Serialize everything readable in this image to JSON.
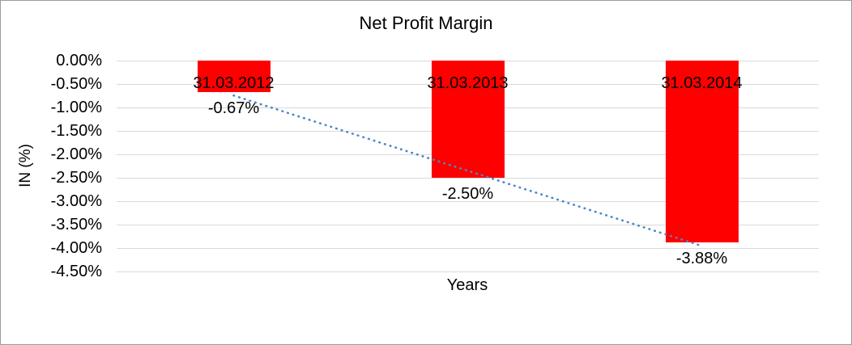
{
  "chart_data": {
    "type": "bar",
    "title": "Net Profit Margin",
    "xlabel": "Years",
    "ylabel": "IN (%)",
    "categories": [
      "31.03.2012",
      "31.03.2013",
      "31.03.2014"
    ],
    "values": [
      -0.67,
      -2.5,
      -3.88
    ],
    "data_labels": [
      "-0.67%",
      "-2.50%",
      "-3.88%"
    ],
    "y_ticks": [
      "0.00%",
      "-0.50%",
      "-1.00%",
      "-1.50%",
      "-2.00%",
      "-2.50%",
      "-3.00%",
      "-3.50%",
      "-4.00%",
      "-4.50%"
    ],
    "ylim": [
      -4.5,
      0
    ],
    "y_tick_step": 0.5,
    "grid": true,
    "legend_position": "none",
    "bar_color": "#ff0000",
    "grid_color": "#d9d9d9",
    "text_color": "#000000",
    "trendline": {
      "type": "linear",
      "style": "dotted",
      "color": "#4f86c6"
    }
  }
}
